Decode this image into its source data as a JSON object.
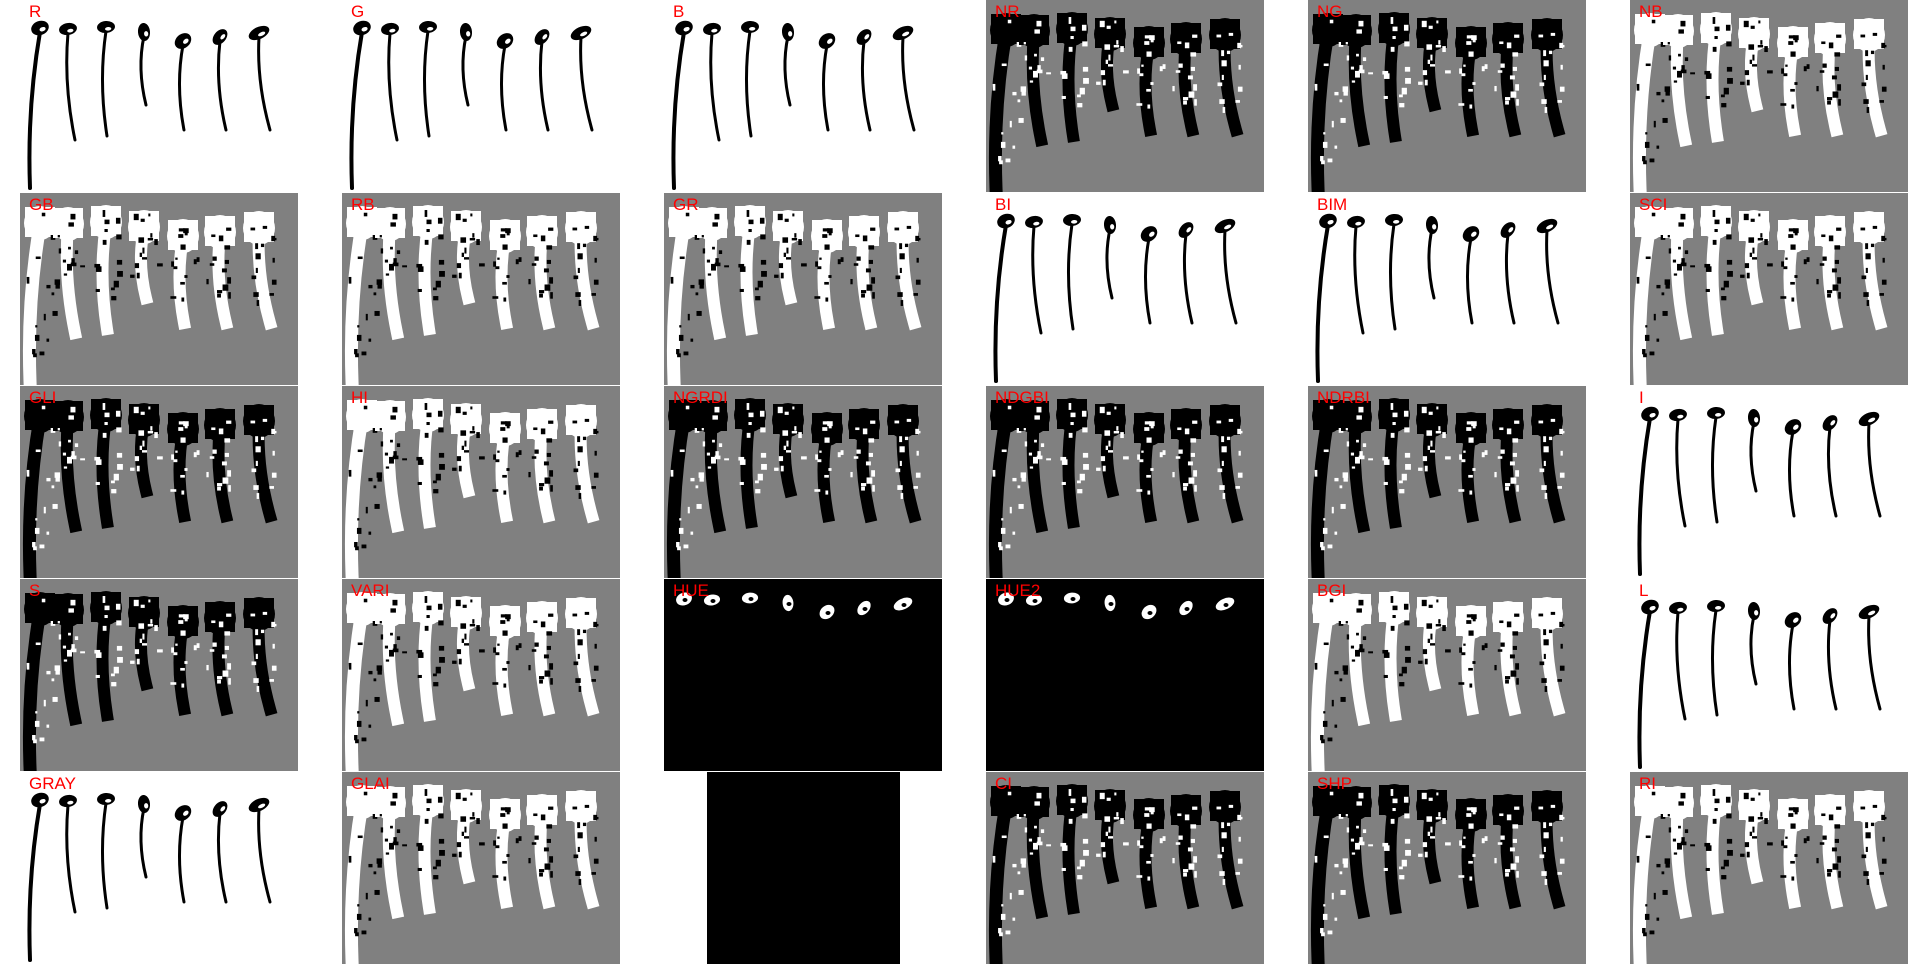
{
  "figure": {
    "panels": [
      {
        "label": "R",
        "style": "white-black"
      },
      {
        "label": "G",
        "style": "white-black"
      },
      {
        "label": "B",
        "style": "white-black"
      },
      {
        "label": "NR",
        "style": "gray-mixed"
      },
      {
        "label": "NG",
        "style": "gray-mixed"
      },
      {
        "label": "NB",
        "style": "gray-white"
      },
      {
        "label": "GB",
        "style": "gray-white"
      },
      {
        "label": "RB",
        "style": "gray-white"
      },
      {
        "label": "GR",
        "style": "gray-white"
      },
      {
        "label": "BI",
        "style": "white-black"
      },
      {
        "label": "BIM",
        "style": "white-black"
      },
      {
        "label": "SCI",
        "style": "gray-white"
      },
      {
        "label": "GLI",
        "style": "gray-mixed"
      },
      {
        "label": "HI",
        "style": "gray-white-heads"
      },
      {
        "label": "NGRDI",
        "style": "gray-mixed"
      },
      {
        "label": "NDGBI",
        "style": "gray-mixed"
      },
      {
        "label": "NDRBI",
        "style": "gray-mixed"
      },
      {
        "label": "I",
        "style": "white-black"
      },
      {
        "label": "S",
        "style": "gray-mixed"
      },
      {
        "label": "VARI",
        "style": "gray-white"
      },
      {
        "label": "HUE",
        "style": "black-heads"
      },
      {
        "label": "HUE2",
        "style": "black-heads"
      },
      {
        "label": "BGI",
        "style": "gray-white"
      },
      {
        "label": "L",
        "style": "white-black"
      },
      {
        "label": "GRAY",
        "style": "white-black"
      },
      {
        "label": "GLAI",
        "style": "gray-white"
      },
      {
        "label": "",
        "style": "black-block"
      },
      {
        "label": "CI",
        "style": "gray-mixed"
      },
      {
        "label": "SHP",
        "style": "gray-mixed"
      },
      {
        "label": "RI",
        "style": "gray-white"
      }
    ]
  },
  "colors": {
    "background": "#ffffff",
    "panel_gray": "#808080",
    "plant_dark": "#000000",
    "plant_light": "#ffffff",
    "label": "#ff0000"
  }
}
